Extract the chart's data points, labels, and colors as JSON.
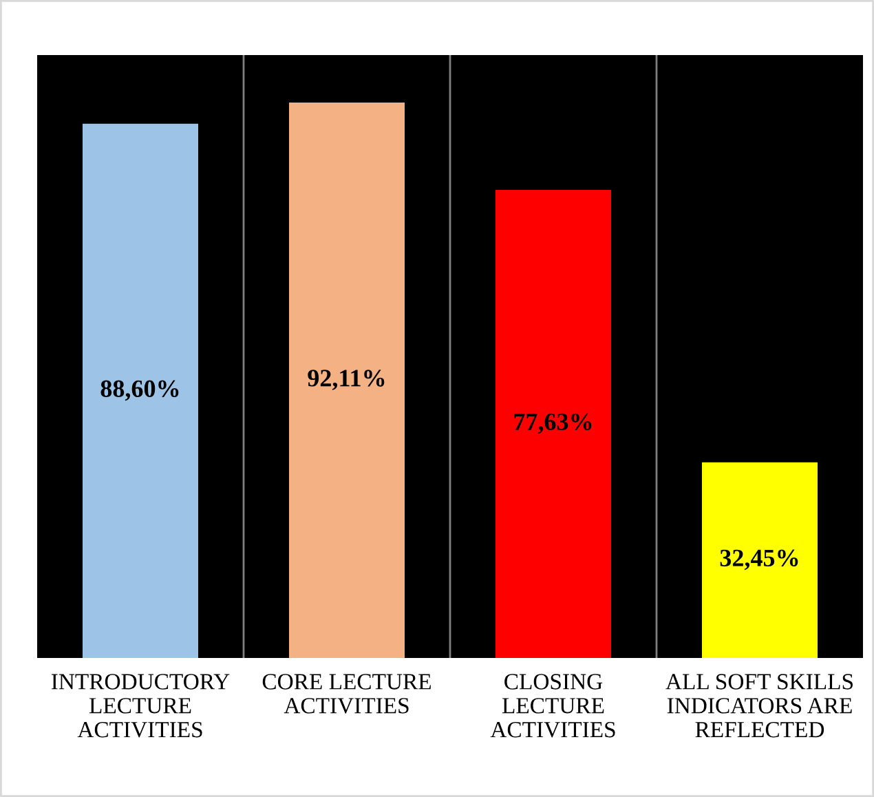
{
  "chart_data": {
    "type": "bar",
    "categories": [
      "INTRODUCTORY\nLECTURE\nACTIVITIES",
      "CORE LECTURE\nACTIVITIES",
      "CLOSING\nLECTURE\nACTIVITIES",
      "ALL SOFT SKILLS\nINDICATORS ARE\nREFLECTED"
    ],
    "values": [
      88.6,
      92.11,
      77.63,
      32.45
    ],
    "colors": [
      "#9dc3e6",
      "#f4b183",
      "#ff0000",
      "#ffff00"
    ],
    "value_labels": [
      "88,60%",
      "92,11%",
      "77,63%",
      "32,45%"
    ],
    "ylim": [
      0,
      100
    ],
    "grid": "x"
  }
}
